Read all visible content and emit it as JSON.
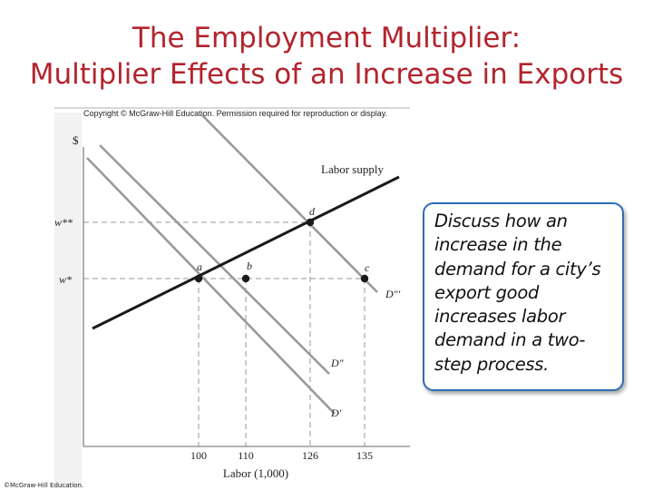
{
  "title": {
    "line1": "The Employment Multiplier:",
    "line2": "Multiplier Effects of an Increase in Exports"
  },
  "figure": {
    "copyright": "Copyright © McGraw-Hill Education. Permission required for reproduction or display.",
    "y_axis_label": "$",
    "x_axis_label": "Labor (1,000)",
    "wage_labels": {
      "high": "w**",
      "low": "w*"
    },
    "x_ticks": [
      "100",
      "110",
      "126",
      "135"
    ],
    "curve_labels": {
      "supply": "Labor supply",
      "d_prime": "D′",
      "d_double": "D″",
      "d_triple": "D″′"
    },
    "points": {
      "a": "a",
      "b": "b",
      "c": "c",
      "d": "d"
    }
  },
  "callout": {
    "text": "Discuss how an increase in the demand for a city’s export good increases labor demand in a two-step process."
  },
  "footer": {
    "credit": "©McGraw-Hill Education."
  },
  "colors": {
    "title": "#b3242d",
    "callout_border": "#2f6cb5",
    "axis_gray": "#9a9a9a"
  }
}
